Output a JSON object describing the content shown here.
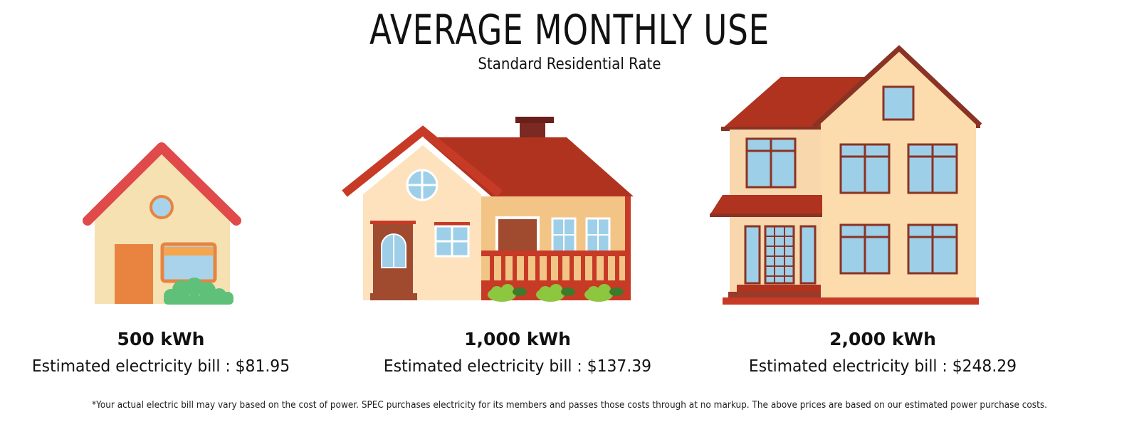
{
  "header": {
    "title": "AVERAGE MONTHLY USE",
    "subtitle": "Standard Residential Rate"
  },
  "tiers": [
    {
      "icon": "small-house-icon",
      "usage": "500 kWh",
      "bill": "Estimated electricity bill : $81.95"
    },
    {
      "icon": "medium-house-icon",
      "usage": "1,000 kWh",
      "bill": "Estimated electricity bill : $137.39"
    },
    {
      "icon": "large-house-icon",
      "usage": "2,000 kWh",
      "bill": "Estimated electricity bill : $248.29"
    }
  ],
  "footnote": "*Your actual electric bill may vary based on the cost of power. SPEC purchases electricity for its members and passes those costs through at no markup. The above prices are based on our estimated power purchase costs.",
  "colors": {
    "roof_small": "#e04a4a",
    "roof_red": "#b03320",
    "wall_cream": "#f9ddb0",
    "window_blue": "#9ecfe8",
    "shrub_green": "#5fc07a"
  }
}
